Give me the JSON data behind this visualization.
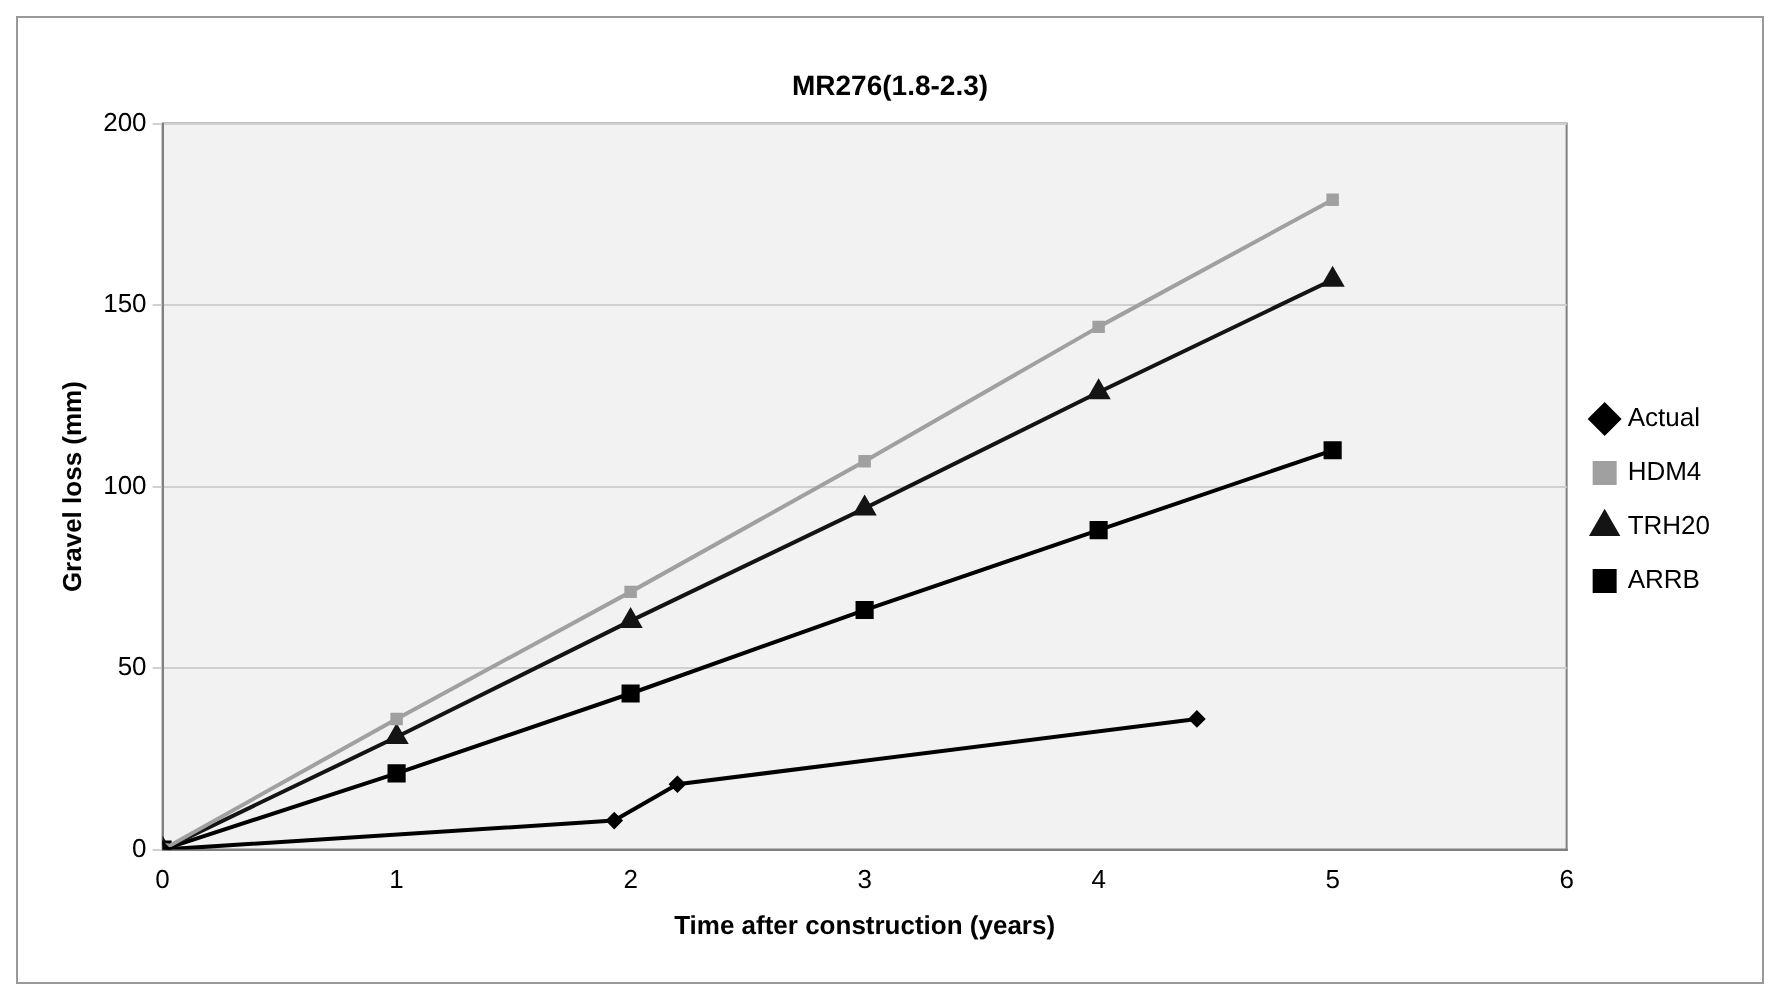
{
  "chart_data": {
    "type": "line",
    "title": "MR276(1.8-2.3)",
    "xlabel": "Time after construction (years)",
    "ylabel": "Gravel loss (mm)",
    "xlim": [
      0,
      6
    ],
    "xticks": [
      0,
      1,
      2,
      3,
      4,
      5,
      6
    ],
    "ylim": [
      0,
      200
    ],
    "yticks": [
      0,
      50,
      100,
      150,
      200
    ],
    "grid": "y",
    "legend": "right",
    "line_style": "solid",
    "series": [
      {
        "name": "Actual",
        "color": "#000000",
        "marker": "diamond",
        "x": [
          0,
          1.93,
          2.2,
          4.42
        ],
        "values": [
          0,
          8,
          18,
          36
        ]
      },
      {
        "name": "HDM4",
        "color": "#a0a0a0",
        "marker": "square",
        "x": [
          0,
          1,
          2,
          3,
          4,
          5
        ],
        "values": [
          0,
          36,
          71,
          107,
          144,
          179
        ]
      },
      {
        "name": "TRH20",
        "color": "#141414",
        "marker": "triangle",
        "x": [
          0,
          1,
          2,
          3,
          4,
          5
        ],
        "values": [
          0,
          31,
          63,
          94,
          126,
          157
        ]
      },
      {
        "name": "ARRB",
        "color": "#000000",
        "marker": "square",
        "x": [
          0,
          1,
          2,
          3,
          4,
          5
        ],
        "values": [
          0,
          21,
          43,
          66,
          88,
          110
        ]
      }
    ]
  }
}
